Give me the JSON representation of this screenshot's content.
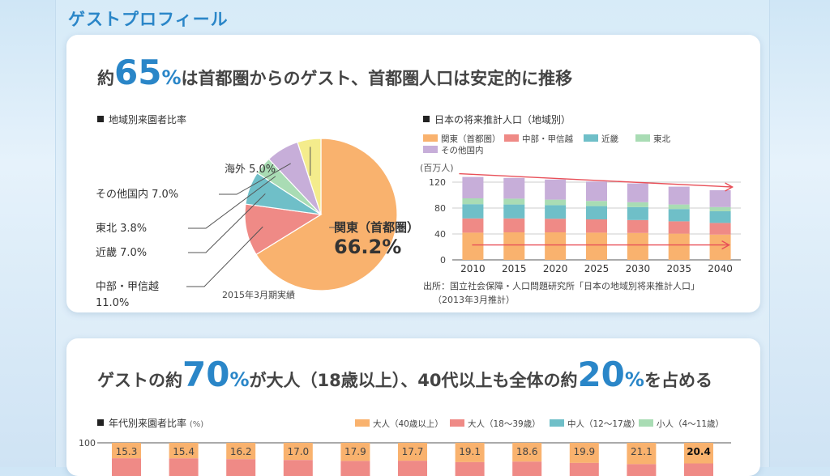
{
  "page_title": "ゲストプロフィール",
  "card1": {
    "headline": {
      "pre": "約",
      "big": "65",
      "pct": "%",
      "post": "は首都圏からのゲスト、首都圏人口は安定的に推移"
    },
    "pie_label": "地域別来園者比率",
    "pie_note": "2015年3月期実績",
    "bar_label": "日本の将来推計人口（地域別）",
    "source_line1": "出所：国立社会保障・人口問題研究所「日本の地域別将来推計人口」",
    "source_line2": "（2013年3月推計）"
  },
  "card2": {
    "headline": {
      "pre": "ゲストの約",
      "big1": "70",
      "pct1": "%",
      "mid": "が大人（18歳以上）、40代以上も全体の約",
      "big2": "20",
      "pct2": "%",
      "post": "を占める"
    },
    "age_label": "年代別来園者比率",
    "age_unit": "(%)"
  },
  "colors": {
    "kanto": "#f9b26e",
    "chubu": "#ef8a86",
    "kinki": "#6fbfc8",
    "tohoku": "#a9dcb4",
    "other": "#c7aed9",
    "overseas": "#f4ec8c",
    "arrow": "#e84f58",
    "title_blue": "#2a86c8"
  },
  "chart_data": [
    {
      "type": "pie",
      "title": "地域別来園者比率",
      "slices": [
        {
          "name": "関東（首都圏）",
          "value": 66.2,
          "label": "66.2%",
          "color": "#f9b26e"
        },
        {
          "name": "中部・甲信越",
          "value": 11.0,
          "label": "11.0%",
          "color": "#ef8a86"
        },
        {
          "name": "近畿",
          "value": 7.0,
          "label": "7.0%",
          "color": "#6fbfc8"
        },
        {
          "name": "東北",
          "value": 3.8,
          "label": "3.8%",
          "color": "#a9dcb4"
        },
        {
          "name": "その他国内",
          "value": 7.0,
          "label": "7.0%",
          "color": "#c7aed9"
        },
        {
          "name": "海外",
          "value": 5.0,
          "label": "5.0%",
          "color": "#f4ec8c"
        }
      ],
      "annotation": "2015年3月期実績"
    },
    {
      "type": "bar",
      "title": "日本の将来推計人口（地域別）",
      "ylabel": "(百万人)",
      "ylim": [
        0,
        130
      ],
      "yticks": [
        0,
        40,
        80,
        120
      ],
      "categories": [
        "2010",
        "2015",
        "2020",
        "2025",
        "2030",
        "2035",
        "2040"
      ],
      "series": [
        {
          "name": "関東（首都圏）",
          "color": "#f9b26e",
          "values": [
            42,
            42.5,
            42.5,
            42,
            41.5,
            40.5,
            39
          ]
        },
        {
          "name": "中部・甲信越",
          "color": "#ef8a86",
          "values": [
            22,
            21.5,
            21,
            20.5,
            20,
            19,
            18
          ]
        },
        {
          "name": "近畿",
          "color": "#6fbfc8",
          "values": [
            22,
            21.5,
            21,
            20.5,
            20,
            19,
            18
          ]
        },
        {
          "name": "東北",
          "color": "#a9dcb4",
          "values": [
            9,
            9,
            8.5,
            8,
            7.5,
            7,
            6.5
          ]
        },
        {
          "name": "その他国内",
          "color": "#c7aed9",
          "values": [
            33,
            32,
            31,
            30,
            29,
            27.5,
            26
          ]
        }
      ]
    },
    {
      "type": "bar",
      "title": "年代別来園者比率",
      "ylabel": "(%)",
      "yticks": [
        100
      ],
      "series": [
        {
          "name": "大人（40歳以上）",
          "color": "#f9b26e",
          "values": [
            15.3,
            15.4,
            16.2,
            17.0,
            17.9,
            17.7,
            19.1,
            18.6,
            19.9,
            21.1,
            20.4
          ]
        },
        {
          "name": "大人（18〜39歳）",
          "color": "#ef8a86",
          "values": []
        },
        {
          "name": "中人（12〜17歳）",
          "color": "#6fbfc8",
          "values": []
        },
        {
          "name": "小人（4〜11歳）",
          "color": "#a9dcb4",
          "values": []
        }
      ]
    }
  ]
}
